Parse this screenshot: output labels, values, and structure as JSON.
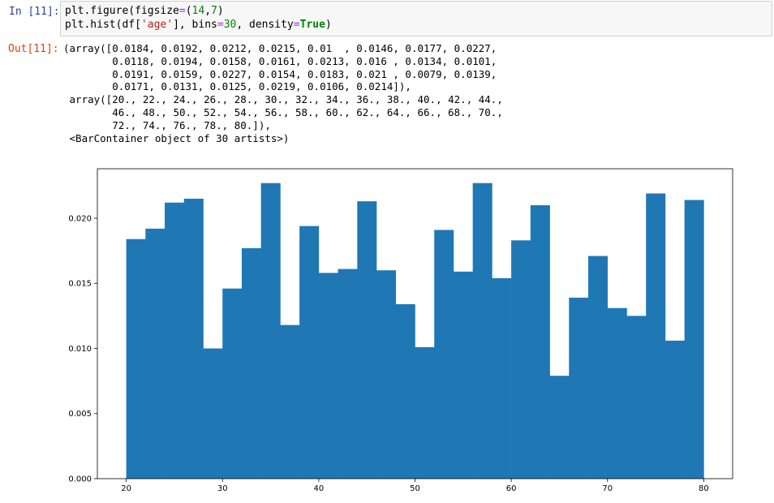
{
  "cell": {
    "in_prompt": "In [11]:",
    "out_prompt": "Out[11]:",
    "code_line_1": {
      "p1": "plt.figure(figsize",
      "eq": "=",
      "p2": "(",
      "n1": "14",
      "p3": ",",
      "n2": "7",
      "p4": ")"
    },
    "code_line_2": {
      "p1": "plt.hist(df[",
      "s1": "'age'",
      "p2": "], bins",
      "eq1": "=",
      "n1": "30",
      "p3": ", density",
      "eq2": "=",
      "kw": "True",
      "p4": ")"
    },
    "output_lines": [
      "(array([0.0184, 0.0192, 0.0212, 0.0215, 0.01  , 0.0146, 0.0177, 0.0227,",
      "        0.0118, 0.0194, 0.0158, 0.0161, 0.0213, 0.016 , 0.0134, 0.0101,",
      "        0.0191, 0.0159, 0.0227, 0.0154, 0.0183, 0.021 , 0.0079, 0.0139,",
      "        0.0171, 0.0131, 0.0125, 0.0219, 0.0106, 0.0214]),",
      " array([20., 22., 24., 26., 28., 30., 32., 34., 36., 38., 40., 42., 44.,",
      "        46., 48., 50., 52., 54., 56., 58., 60., 62., 64., 66., 68., 70.,",
      "        72., 74., 76., 78., 80.]),",
      " <BarContainer object of 30 artists>)"
    ]
  },
  "chart_data": {
    "type": "bar",
    "bin_edges": [
      20,
      22,
      24,
      26,
      28,
      30,
      32,
      34,
      36,
      38,
      40,
      42,
      44,
      46,
      48,
      50,
      52,
      54,
      56,
      58,
      60,
      62,
      64,
      66,
      68,
      70,
      72,
      74,
      76,
      78,
      80
    ],
    "values": [
      0.0184,
      0.0192,
      0.0212,
      0.0215,
      0.01,
      0.0146,
      0.0177,
      0.0227,
      0.0118,
      0.0194,
      0.0158,
      0.0161,
      0.0213,
      0.016,
      0.0134,
      0.0101,
      0.0191,
      0.0159,
      0.0227,
      0.0154,
      0.0183,
      0.021,
      0.0079,
      0.0139,
      0.0171,
      0.0131,
      0.0125,
      0.0219,
      0.0106,
      0.0214
    ],
    "xlim": [
      17,
      83
    ],
    "ylim": [
      0,
      0.0238
    ],
    "x_ticks": [
      20,
      30,
      40,
      50,
      60,
      70,
      80
    ],
    "x_tick_labels": [
      "20",
      "30",
      "40",
      "50",
      "60",
      "70",
      "80"
    ],
    "y_ticks": [
      0,
      0.005,
      0.01,
      0.015,
      0.02
    ],
    "y_tick_labels": [
      "0.000",
      "0.005",
      "0.010",
      "0.015",
      "0.020"
    ],
    "bar_color": "#1f77b4",
    "grid": false,
    "title": "",
    "xlabel": "",
    "ylabel": ""
  }
}
